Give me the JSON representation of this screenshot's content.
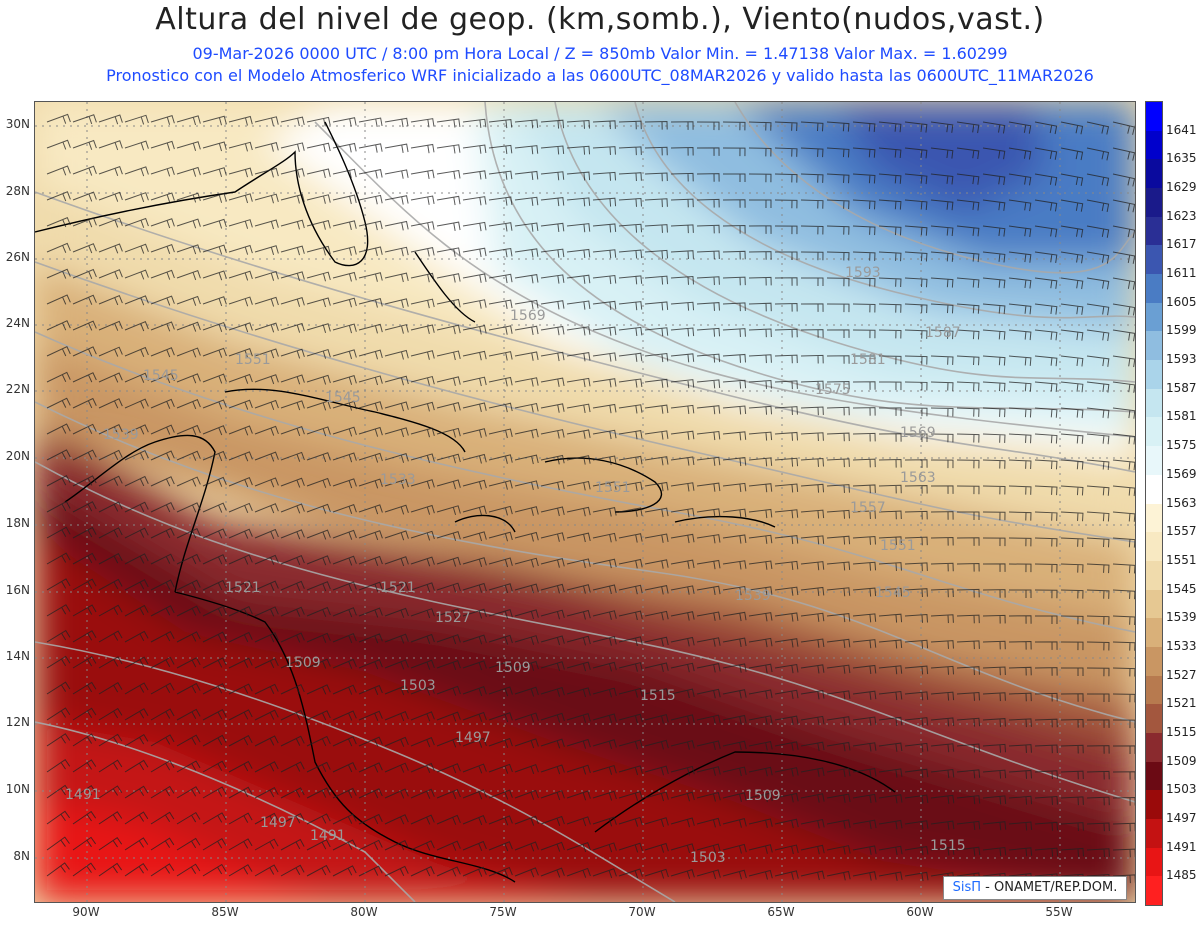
{
  "header": {
    "title": "Altura del nivel de geop. (km,somb.), Viento(nudos,vast.)",
    "subtitle_line1": "09-Mar-2026  0000 UTC / 8:00 pm Hora Local / Z = 850mb     Valor Min. = 1.47138  Valor Max. = 1.60299",
    "subtitle_line2": "Pronostico con el Modelo Atmosferico WRF inicializado a las 0600UTC_08MAR2026 y valido hasta las  0600UTC_11MAR2026"
  },
  "map": {
    "lat_labels": [
      "30N",
      "28N",
      "26N",
      "24N",
      "22N",
      "20N",
      "18N",
      "16N",
      "14N",
      "12N",
      "10N",
      "8N"
    ],
    "lon_labels": [
      "90W",
      "85W",
      "80W",
      "75W",
      "70W",
      "65W",
      "60W",
      "55W"
    ],
    "contour_labels": [
      {
        "text": "1569"
      },
      {
        "text": "1593"
      },
      {
        "text": "1587"
      },
      {
        "text": "1581"
      },
      {
        "text": "1575"
      },
      {
        "text": "1569"
      },
      {
        "text": "1563"
      },
      {
        "text": "1557"
      },
      {
        "text": "1551"
      },
      {
        "text": "1545"
      },
      {
        "text": "1551"
      },
      {
        "text": "1545"
      },
      {
        "text": "1539"
      },
      {
        "text": "1533"
      },
      {
        "text": "1527"
      },
      {
        "text": "1521"
      },
      {
        "text": "1521"
      },
      {
        "text": "1509"
      },
      {
        "text": "1509"
      },
      {
        "text": "1503"
      },
      {
        "text": "1515"
      },
      {
        "text": "1497"
      },
      {
        "text": "1491"
      },
      {
        "text": "1497"
      },
      {
        "text": "1491"
      },
      {
        "text": "1509"
      },
      {
        "text": "1503"
      },
      {
        "text": "1515"
      },
      {
        "text": "1551"
      },
      {
        "text": "1545"
      },
      {
        "text": "1539"
      }
    ],
    "credit_brand": "SisΠ",
    "credit_text": " - ONAMET/REP.DOM."
  },
  "colorbar": {
    "levels": [
      {
        "label": "1641",
        "color": "#0000ff"
      },
      {
        "label": "1635",
        "color": "#0000cc"
      },
      {
        "label": "1629",
        "color": "#0a0a9e"
      },
      {
        "label": "1623",
        "color": "#1a1a8a"
      },
      {
        "label": "1617",
        "color": "#2a2f95"
      },
      {
        "label": "1611",
        "color": "#3b56b0"
      },
      {
        "label": "1605",
        "color": "#4a7cc4"
      },
      {
        "label": "1599",
        "color": "#6a9fd3"
      },
      {
        "label": "1593",
        "color": "#8fbde0"
      },
      {
        "label": "1587",
        "color": "#aad4ea"
      },
      {
        "label": "1581",
        "color": "#c5e6f0"
      },
      {
        "label": "1575",
        "color": "#d8f1f5"
      },
      {
        "label": "1569",
        "color": "#e8f7fa"
      },
      {
        "label": "1563",
        "color": "#ffffff"
      },
      {
        "label": "1557",
        "color": "#fdf3d6"
      },
      {
        "label": "1551",
        "color": "#f8e9c2"
      },
      {
        "label": "1545",
        "color": "#f0dbac"
      },
      {
        "label": "1539",
        "color": "#e6c892"
      },
      {
        "label": "1533",
        "color": "#d9b079"
      },
      {
        "label": "1527",
        "color": "#c99663"
      },
      {
        "label": "1521",
        "color": "#b77a4f"
      },
      {
        "label": "1515",
        "color": "#a3573e"
      },
      {
        "label": "1509",
        "color": "#8a2a2e"
      },
      {
        "label": "1503",
        "color": "#6b0a14"
      },
      {
        "label": "1497",
        "color": "#9a0a0a"
      },
      {
        "label": "1491",
        "color": "#c41212"
      },
      {
        "label": "1485",
        "color": "#e81515"
      },
      {
        "label": "",
        "color": "#ff2020"
      }
    ]
  }
}
